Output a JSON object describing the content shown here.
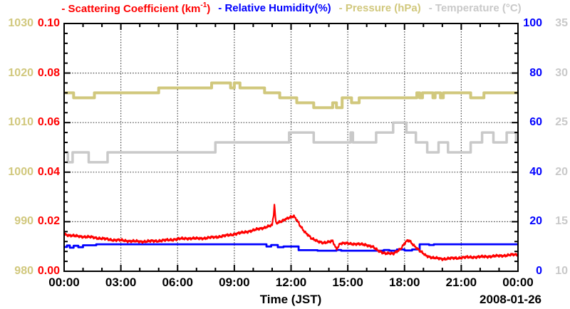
{
  "legend": {
    "entries": [
      {
        "id": "scattering",
        "dash": "-",
        "pre": "Scattering Coefficient (km",
        "sup": "-1",
        "post": ")"
      },
      {
        "id": "humidity",
        "dash": "-",
        "label": "Relative Humidity(%)"
      },
      {
        "id": "pressure",
        "dash": "-",
        "label": "Pressure (hPa)"
      },
      {
        "id": "temperature",
        "dash": "-",
        "label": "Temperature (°C)"
      }
    ]
  },
  "chart_data": {
    "type": "line",
    "xlabel": "Time (JST)",
    "date_label": "2008-01-26",
    "grid": "dotted lines at major ticks, on",
    "x_axis": {
      "unit": "hours",
      "range": [
        0,
        24
      ],
      "major_tick_interval_hours": 3,
      "minor_tick_interval_hours": 1,
      "tick_labels": [
        "00:00",
        "03:00",
        "06:00",
        "09:00",
        "12:00",
        "15:00",
        "18:00",
        "21:00",
        "00:00"
      ]
    },
    "axes": {
      "pressure": {
        "label": "Pressure (hPa)",
        "side": "left-outer",
        "range": [
          980,
          1030
        ],
        "ticks": [
          "1030",
          "1020",
          "1010",
          "1000",
          "990",
          "980"
        ],
        "color": "#d1c87d"
      },
      "scattering": {
        "label": "Scattering Coefficient (km^-1)",
        "side": "left-inner",
        "range": [
          0,
          0.1
        ],
        "ticks": [
          "0.10",
          "0.08",
          "0.06",
          "0.04",
          "0.02",
          "0.00"
        ],
        "color": "#ff0000"
      },
      "humidity": {
        "label": "Relative Humidity (%)",
        "side": "right-inner",
        "range": [
          0,
          100
        ],
        "ticks": [
          "100",
          "80",
          "60",
          "40",
          "20",
          "0"
        ],
        "color": "#0000ff"
      },
      "temperature": {
        "label": "Temperature (°C)",
        "side": "right-outer",
        "range": [
          10,
          35
        ],
        "ticks": [
          "35",
          "30",
          "25",
          "20",
          "15",
          "10"
        ],
        "color": "#c9c9c9"
      }
    },
    "series": [
      {
        "name": "Scattering Coefficient",
        "axis": "scattering",
        "style": "noisy-line",
        "points": [
          [
            0,
            0.015
          ],
          [
            0.3,
            0.0145
          ],
          [
            0.6,
            0.0142
          ],
          [
            1.0,
            0.014
          ],
          [
            1.5,
            0.0137
          ],
          [
            2.0,
            0.0132
          ],
          [
            2.5,
            0.0127
          ],
          [
            3.0,
            0.0125
          ],
          [
            3.5,
            0.0122
          ],
          [
            4.0,
            0.012
          ],
          [
            4.5,
            0.0121
          ],
          [
            5.0,
            0.0123
          ],
          [
            5.5,
            0.0126
          ],
          [
            6.0,
            0.013
          ],
          [
            6.5,
            0.0133
          ],
          [
            7.0,
            0.0132
          ],
          [
            7.5,
            0.0134
          ],
          [
            8.0,
            0.0138
          ],
          [
            8.5,
            0.0143
          ],
          [
            9.0,
            0.015
          ],
          [
            9.5,
            0.0157
          ],
          [
            10.0,
            0.0165
          ],
          [
            10.5,
            0.0175
          ],
          [
            11.0,
            0.0185
          ],
          [
            11.08,
            0.023
          ],
          [
            11.12,
            0.0267
          ],
          [
            11.2,
            0.0195
          ],
          [
            11.4,
            0.02
          ],
          [
            11.6,
            0.0205
          ],
          [
            11.8,
            0.0212
          ],
          [
            12.0,
            0.022
          ],
          [
            12.15,
            0.0224
          ],
          [
            12.3,
            0.0208
          ],
          [
            12.5,
            0.018
          ],
          [
            12.7,
            0.016
          ],
          [
            12.9,
            0.0148
          ],
          [
            13.1,
            0.0132
          ],
          [
            13.4,
            0.012
          ],
          [
            13.7,
            0.0116
          ],
          [
            14.0,
            0.0118
          ],
          [
            14.2,
            0.0121
          ],
          [
            14.4,
            0.009
          ],
          [
            14.6,
            0.0113
          ],
          [
            15.0,
            0.0112
          ],
          [
            15.5,
            0.011
          ],
          [
            16.0,
            0.0106
          ],
          [
            16.3,
            0.01
          ],
          [
            16.6,
            0.0082
          ],
          [
            17.0,
            0.0073
          ],
          [
            17.4,
            0.007
          ],
          [
            17.8,
            0.0092
          ],
          [
            18.1,
            0.012
          ],
          [
            18.25,
            0.0124
          ],
          [
            18.5,
            0.0105
          ],
          [
            18.8,
            0.0082
          ],
          [
            19.1,
            0.0065
          ],
          [
            19.5,
            0.0054
          ],
          [
            20.0,
            0.005
          ],
          [
            20.5,
            0.0052
          ],
          [
            21.0,
            0.0055
          ],
          [
            21.5,
            0.0057
          ],
          [
            22.0,
            0.0058
          ],
          [
            22.5,
            0.006
          ],
          [
            23.0,
            0.0062
          ],
          [
            23.5,
            0.0065
          ],
          [
            24.0,
            0.0068
          ]
        ]
      },
      {
        "name": "Relative Humidity",
        "axis": "humidity",
        "style": "step",
        "points": [
          [
            0,
            9.8
          ],
          [
            0.15,
            10.4
          ],
          [
            0.3,
            9.5
          ],
          [
            0.5,
            10.3
          ],
          [
            0.75,
            9.7
          ],
          [
            1.0,
            10.5
          ],
          [
            1.7,
            10.9
          ],
          [
            10.7,
            10.0
          ],
          [
            10.95,
            10.6
          ],
          [
            11.3,
            9.7
          ],
          [
            11.6,
            10.0
          ],
          [
            12.4,
            8.5
          ],
          [
            13.4,
            8.3
          ],
          [
            14.4,
            8.6
          ],
          [
            14.65,
            8.3
          ],
          [
            16.9,
            8.6
          ],
          [
            17.2,
            8.3
          ],
          [
            17.6,
            8.8
          ],
          [
            18.0,
            8.4
          ],
          [
            18.4,
            8.8
          ],
          [
            18.8,
            10.9
          ],
          [
            19.3,
            10.6
          ],
          [
            19.55,
            10.9
          ],
          [
            24,
            10.9
          ]
        ]
      },
      {
        "name": "Pressure",
        "axis": "pressure",
        "style": "step",
        "points": [
          [
            0,
            1016
          ],
          [
            0.5,
            1015
          ],
          [
            1.6,
            1016
          ],
          [
            5.0,
            1017
          ],
          [
            7.8,
            1018
          ],
          [
            8.8,
            1017
          ],
          [
            9.0,
            1018
          ],
          [
            9.3,
            1017
          ],
          [
            10.6,
            1016
          ],
          [
            11.4,
            1015
          ],
          [
            12.3,
            1014
          ],
          [
            13.2,
            1013
          ],
          [
            14.2,
            1014
          ],
          [
            14.4,
            1013
          ],
          [
            14.7,
            1015
          ],
          [
            15.2,
            1014
          ],
          [
            15.6,
            1015
          ],
          [
            18.65,
            1016
          ],
          [
            18.8,
            1015
          ],
          [
            18.95,
            1016
          ],
          [
            19.5,
            1015
          ],
          [
            19.62,
            1016
          ],
          [
            19.9,
            1015
          ],
          [
            20.05,
            1016
          ],
          [
            21.5,
            1015
          ],
          [
            22.2,
            1016
          ],
          [
            24,
            1016
          ]
        ]
      },
      {
        "name": "Temperature",
        "axis": "temperature",
        "style": "step",
        "points": [
          [
            0,
            22
          ],
          [
            0.2,
            21
          ],
          [
            0.45,
            22
          ],
          [
            1.3,
            21
          ],
          [
            2.3,
            22
          ],
          [
            8.0,
            23
          ],
          [
            11.9,
            24
          ],
          [
            13.2,
            23
          ],
          [
            15.15,
            24
          ],
          [
            15.27,
            23
          ],
          [
            16.5,
            24
          ],
          [
            17.4,
            25
          ],
          [
            18.1,
            24
          ],
          [
            18.6,
            23
          ],
          [
            19.2,
            22
          ],
          [
            19.8,
            23
          ],
          [
            20.3,
            22
          ],
          [
            21.5,
            23
          ],
          [
            22.1,
            24
          ],
          [
            22.7,
            23
          ],
          [
            23.4,
            24
          ],
          [
            23.9,
            23
          ],
          [
            24,
            23
          ]
        ]
      }
    ]
  }
}
